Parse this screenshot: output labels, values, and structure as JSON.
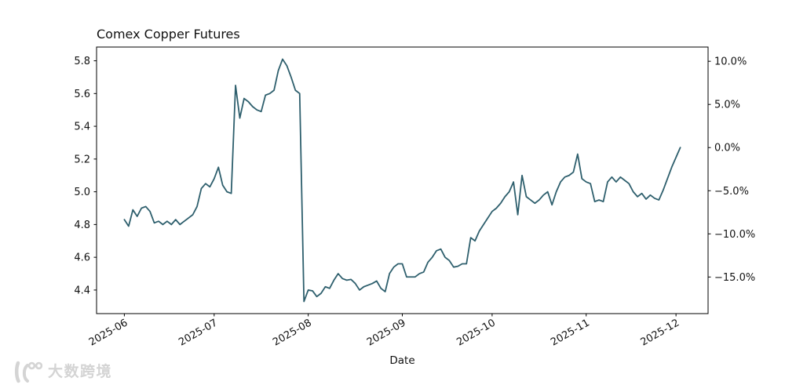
{
  "figure": {
    "title": "Comex Copper Futures",
    "xlabel": "Date",
    "background": "#ffffff",
    "line_color": "#2e5f6d",
    "axis_color": "#000000",
    "tick_label_color": "#111111",
    "watermark": {
      "icon": "dny-logo-icon",
      "text": "大数跨境",
      "color": "#d4d4d4"
    }
  },
  "chart_data": {
    "type": "line",
    "title": "Comex Copper Futures",
    "xlabel": "Date",
    "ylabel": "",
    "grid": false,
    "legend": null,
    "x_tick_labels": [
      "2025-06",
      "2025-07",
      "2025-08",
      "2025-09",
      "2025-10",
      "2025-11",
      "2025-12"
    ],
    "x_tick_indices": [
      0,
      21,
      43,
      65,
      86,
      108,
      129
    ],
    "left_y_ticks": [
      5.8,
      5.6,
      5.4,
      5.2,
      5.0,
      4.8,
      4.6,
      4.4
    ],
    "right_y_tick_labels": [
      "10.0%",
      "5.0%",
      "0.0%",
      "−5.0%",
      "−10.0%",
      "−15.0%"
    ],
    "right_y_tick_pcts": [
      10,
      5,
      0,
      -5,
      -10,
      -15
    ],
    "pct_axis_base": 5.27,
    "ylim": [
      4.256,
      5.884
    ],
    "x_margin_frac": 0.05,
    "series": [
      {
        "name": "Comex Copper Futures",
        "values": [
          4.83,
          4.79,
          4.89,
          4.85,
          4.9,
          4.91,
          4.88,
          4.81,
          4.82,
          4.8,
          4.82,
          4.8,
          4.83,
          4.8,
          4.82,
          4.84,
          4.86,
          4.91,
          5.02,
          5.05,
          5.03,
          5.08,
          5.15,
          5.04,
          5.0,
          4.99,
          5.65,
          5.45,
          5.57,
          5.55,
          5.52,
          5.5,
          5.49,
          5.59,
          5.6,
          5.62,
          5.74,
          5.81,
          5.77,
          5.7,
          5.62,
          5.6,
          4.33,
          4.4,
          4.395,
          4.36,
          4.38,
          4.42,
          4.41,
          4.46,
          4.5,
          4.47,
          4.46,
          4.465,
          4.44,
          4.4,
          4.42,
          4.43,
          4.44,
          4.455,
          4.41,
          4.39,
          4.5,
          4.54,
          4.56,
          4.56,
          4.48,
          4.48,
          4.48,
          4.5,
          4.51,
          4.57,
          4.6,
          4.64,
          4.65,
          4.6,
          4.58,
          4.54,
          4.545,
          4.56,
          4.56,
          4.72,
          4.7,
          4.76,
          4.8,
          4.84,
          4.88,
          4.9,
          4.93,
          4.97,
          5.0,
          5.06,
          4.86,
          5.1,
          4.97,
          4.95,
          4.93,
          4.95,
          4.98,
          5.0,
          4.92,
          5.0,
          5.06,
          5.09,
          5.1,
          5.12,
          5.23,
          5.08,
          5.06,
          5.05,
          4.94,
          4.95,
          4.94,
          5.06,
          5.09,
          5.06,
          5.09,
          5.07,
          5.05,
          5.0,
          4.97,
          4.99,
          4.955,
          4.98,
          4.96,
          4.95,
          5.01,
          5.08,
          5.15,
          5.21,
          5.27
        ]
      }
    ]
  }
}
